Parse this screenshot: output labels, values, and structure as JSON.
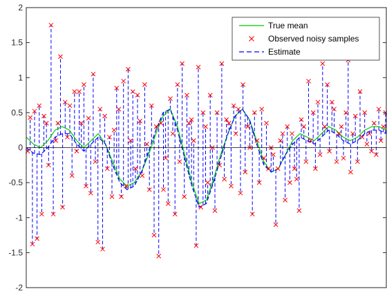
{
  "chart_data": {
    "type": "line",
    "title": "",
    "xlabel": "",
    "ylabel": "",
    "xlim": [
      0,
      1
    ],
    "ylim": [
      -2,
      2
    ],
    "yticks": [
      2,
      1.5,
      1,
      0.5,
      0,
      -0.5,
      -1,
      -1.5,
      -2
    ],
    "ytick_labels": [
      "2",
      "1.5",
      "1",
      "0.5",
      "0",
      "-0.5",
      "-1",
      "-1.5",
      "-2"
    ],
    "grid": false,
    "zero_line": true,
    "legend": {
      "placement": "top-right",
      "entries": [
        {
          "label": "True mean",
          "style": "solid-line",
          "color": "#00cc00"
        },
        {
          "label": "Observed noisy samples",
          "style": "x-marker",
          "color": "#ff0000"
        },
        {
          "label": "Estimate",
          "style": "dashed-line",
          "color": "#0000ff"
        }
      ]
    },
    "series": [
      {
        "name": "True mean",
        "color": "#00cc00",
        "x": [
          0.0,
          0.02,
          0.04,
          0.06,
          0.08,
          0.1,
          0.12,
          0.14,
          0.16,
          0.18,
          0.2,
          0.22,
          0.24,
          0.26,
          0.28,
          0.3,
          0.32,
          0.34,
          0.36,
          0.38,
          0.4,
          0.42,
          0.44,
          0.46,
          0.48,
          0.5,
          0.52,
          0.54,
          0.56,
          0.58,
          0.6,
          0.62,
          0.64,
          0.66,
          0.68,
          0.7,
          0.72,
          0.74,
          0.76,
          0.78,
          0.8,
          0.82,
          0.84,
          0.86,
          0.88,
          0.9,
          0.92,
          0.94,
          0.96,
          0.98,
          1.0
        ],
        "y": [
          0.15,
          0.05,
          0.0,
          0.1,
          0.25,
          0.3,
          0.25,
          0.1,
          0.0,
          0.1,
          0.2,
          0.05,
          -0.2,
          -0.45,
          -0.55,
          -0.5,
          -0.35,
          -0.1,
          0.2,
          0.45,
          0.55,
          0.3,
          -0.1,
          -0.5,
          -0.8,
          -0.75,
          -0.45,
          -0.1,
          0.2,
          0.45,
          0.55,
          0.4,
          0.1,
          -0.2,
          -0.35,
          -0.3,
          -0.1,
          0.1,
          0.2,
          0.15,
          0.1,
          0.2,
          0.3,
          0.25,
          0.15,
          0.1,
          0.15,
          0.25,
          0.3,
          0.3,
          0.25
        ]
      },
      {
        "name": "Observed noisy samples",
        "color": "#ff0000",
        "x": [
          0.004,
          0.011,
          0.017,
          0.023,
          0.03,
          0.036,
          0.043,
          0.049,
          0.056,
          0.062,
          0.069,
          0.075,
          0.082,
          0.088,
          0.095,
          0.101,
          0.108,
          0.114,
          0.121,
          0.127,
          0.134,
          0.14,
          0.147,
          0.153,
          0.16,
          0.166,
          0.173,
          0.179,
          0.186,
          0.192,
          0.199,
          0.205,
          0.212,
          0.218,
          0.225,
          0.231,
          0.238,
          0.244,
          0.251,
          0.257,
          0.264,
          0.27,
          0.277,
          0.283,
          0.29,
          0.296,
          0.303,
          0.309,
          0.316,
          0.322,
          0.329,
          0.335,
          0.342,
          0.348,
          0.355,
          0.361,
          0.368,
          0.374,
          0.381,
          0.387,
          0.394,
          0.4,
          0.407,
          0.413,
          0.42,
          0.426,
          0.433,
          0.439,
          0.446,
          0.452,
          0.459,
          0.465,
          0.472,
          0.478,
          0.485,
          0.491,
          0.498,
          0.504,
          0.511,
          0.517,
          0.524,
          0.53,
          0.537,
          0.543,
          0.55,
          0.556,
          0.563,
          0.569,
          0.576,
          0.582,
          0.589,
          0.595,
          0.602,
          0.608,
          0.615,
          0.621,
          0.628,
          0.634,
          0.641,
          0.647,
          0.654,
          0.66,
          0.667,
          0.673,
          0.68,
          0.686,
          0.693,
          0.699,
          0.706,
          0.712,
          0.719,
          0.725,
          0.732,
          0.738,
          0.745,
          0.751,
          0.758,
          0.764,
          0.771,
          0.777,
          0.784,
          0.79,
          0.797,
          0.803,
          0.81,
          0.816,
          0.823,
          0.829,
          0.836,
          0.842,
          0.849,
          0.855,
          0.862,
          0.868,
          0.875,
          0.881,
          0.888,
          0.894,
          0.901,
          0.907,
          0.914,
          0.92,
          0.927,
          0.933,
          0.94,
          0.946,
          0.953,
          0.959,
          0.966,
          0.972,
          0.979,
          0.985,
          0.992,
          0.998
        ],
        "y": [
          -0.05,
          0.43,
          -1.38,
          0.52,
          -1.3,
          0.6,
          -0.95,
          0.45,
          0.35,
          -0.25,
          1.75,
          -0.95,
          0.1,
          0.35,
          1.3,
          -0.85,
          0.65,
          0.15,
          0.6,
          -0.4,
          0.8,
          -0.05,
          0.8,
          0.35,
          0.9,
          -0.55,
          0.42,
          -0.65,
          1.05,
          -0.2,
          -1.35,
          0.55,
          -1.45,
          0.45,
          -0.3,
          0.15,
          -0.7,
          0.25,
          0.85,
          0.55,
          -0.7,
          0.95,
          -0.55,
          1.12,
          0.1,
          0.8,
          -0.3,
          0.75,
          0.38,
          -0.4,
          0.9,
          0.05,
          -0.6,
          0.6,
          -1.25,
          0.3,
          -1.55,
          0.35,
          -0.6,
          -0.15,
          -0.8,
          0.7,
          0.2,
          -0.95,
          0.9,
          -0.2,
          1.2,
          -0.7,
          0.75,
          0.35,
          0.4,
          0.1,
          -1.4,
          1.15,
          -0.85,
          0.5,
          0.3,
          -0.5,
          0.75,
          0.0,
          -0.9,
          0.5,
          -0.25,
          1.2,
          -0.45,
          0.4,
          0.35,
          -0.55,
          0.6,
          0.2,
          0.55,
          -0.65,
          0.9,
          -0.35,
          0.3,
          0.0,
          -0.95,
          0.5,
          0.1,
          -0.5,
          0.55,
          -0.15,
          0.35,
          -0.3,
          0.0,
          -0.1,
          -1.1,
          -0.3,
          0.1,
          0.2,
          -0.75,
          0.3,
          -0.5,
          0.2,
          -0.3,
          -0.45,
          -0.9,
          0.4,
          0.3,
          -0.2,
          0.95,
          0.1,
          0.5,
          -0.3,
          0.65,
          -0.1,
          1.2,
          0.3,
          0.9,
          -0.05,
          0.65,
          0.55,
          -0.2,
          0.2,
          0.3,
          -0.15,
          0.5,
          1.25,
          -0.35,
          0.2,
          0.45,
          -0.2,
          0.8,
          0.15,
          0.5,
          0.05,
          0.2,
          -0.05,
          0.35,
          -0.1,
          0.55,
          0.1,
          0.3,
          0.5
        ]
      },
      {
        "name": "Estimate",
        "color": "#0000ff",
        "x": [
          0.0,
          0.02,
          0.04,
          0.06,
          0.08,
          0.1,
          0.12,
          0.14,
          0.16,
          0.18,
          0.2,
          0.22,
          0.24,
          0.26,
          0.28,
          0.3,
          0.32,
          0.34,
          0.36,
          0.38,
          0.4,
          0.42,
          0.44,
          0.46,
          0.48,
          0.5,
          0.52,
          0.54,
          0.56,
          0.58,
          0.6,
          0.62,
          0.64,
          0.66,
          0.68,
          0.7,
          0.72,
          0.74,
          0.76,
          0.78,
          0.8,
          0.82,
          0.84,
          0.86,
          0.88,
          0.9,
          0.92,
          0.94,
          0.96,
          0.98,
          1.0
        ],
        "y": [
          0.0,
          -0.08,
          -0.1,
          0.0,
          0.15,
          0.2,
          0.2,
          0.05,
          -0.05,
          0.05,
          0.15,
          0.05,
          -0.25,
          -0.5,
          -0.6,
          -0.55,
          -0.35,
          -0.05,
          0.25,
          0.5,
          0.55,
          0.25,
          -0.15,
          -0.55,
          -0.85,
          -0.8,
          -0.5,
          -0.15,
          0.2,
          0.45,
          0.55,
          0.4,
          0.05,
          -0.25,
          -0.35,
          -0.3,
          -0.1,
          0.05,
          0.15,
          0.1,
          0.05,
          0.15,
          0.25,
          0.2,
          0.1,
          0.05,
          0.1,
          0.2,
          0.25,
          0.25,
          0.2
        ]
      }
    ]
  }
}
